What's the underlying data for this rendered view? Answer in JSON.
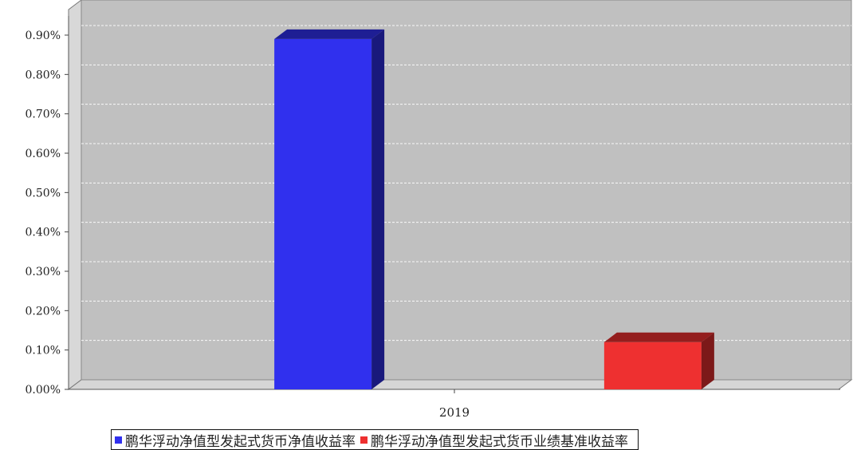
{
  "chart_data": {
    "type": "bar",
    "categories": [
      "2019"
    ],
    "series": [
      {
        "name": "鹏华浮动净值型发起式货币净值收益率",
        "color": "#3030ee",
        "values": [
          0.89
        ]
      },
      {
        "name": "鹏华浮动净值型发起式货币业绩基准收益率",
        "color": "#ee3030",
        "values": [
          0.12
        ]
      }
    ],
    "ylim": [
      0,
      0.9
    ],
    "yticks": [
      "0.00%",
      "0.10%",
      "0.20%",
      "0.30%",
      "0.40%",
      "0.50%",
      "0.60%",
      "0.70%",
      "0.80%",
      "0.90%"
    ],
    "grid": true,
    "legend_position": "bottom",
    "plot_background": "#c0c0c0"
  }
}
